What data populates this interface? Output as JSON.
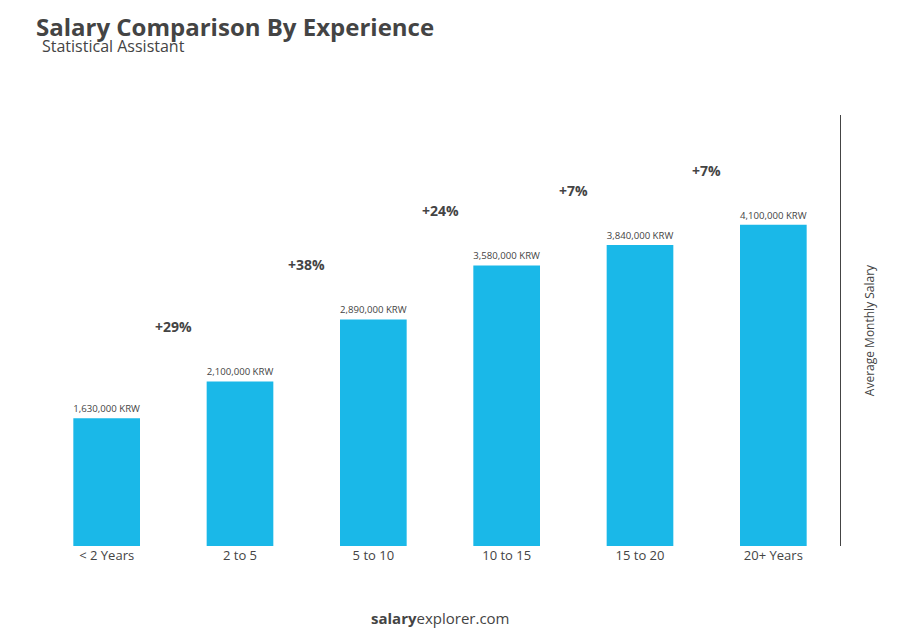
{
  "chart_data": {
    "type": "bar",
    "title": "Salary Comparison By Experience",
    "subtitle": "Statistical Assistant",
    "ylabel": "Average Monthly Salary",
    "categories": [
      "< 2 Years",
      "2 to 5",
      "5 to 10",
      "10 to 15",
      "15 to 20",
      "20+ Years"
    ],
    "values": [
      1630000,
      2100000,
      2890000,
      3580000,
      3840000,
      4100000
    ],
    "value_labels": [
      "1,630,000 KRW",
      "2,100,000 KRW",
      "2,890,000 KRW",
      "3,580,000 KRW",
      "3,840,000 KRW",
      "4,100,000 KRW"
    ],
    "data_labels": true,
    "color": "#1ab8e8",
    "ylim": [
      0,
      5500000
    ],
    "tick_labels": "x",
    "grid": false,
    "annotations": [
      "+29%",
      "+38%",
      "+24%",
      "+7%",
      "+7%"
    ],
    "watermark": [
      "salary",
      "explorer.com"
    ]
  }
}
